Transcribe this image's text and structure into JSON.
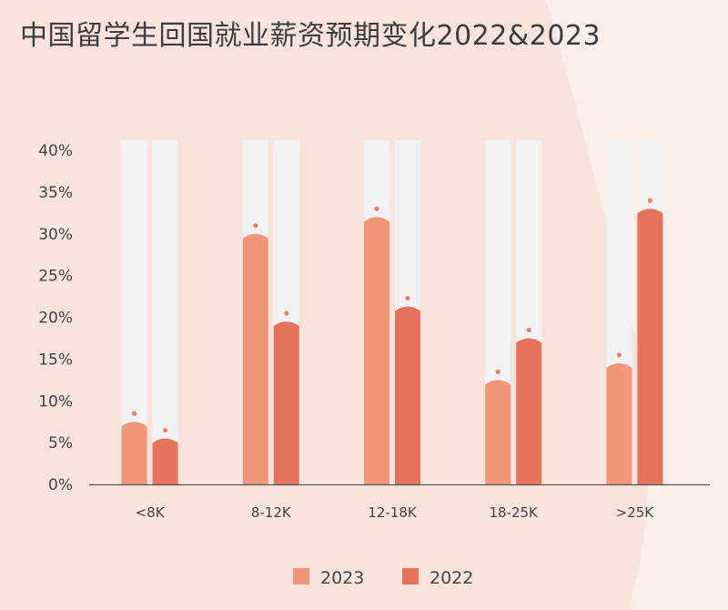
{
  "title": "中国留学生回国就业薪资预期变化2022&2023",
  "colors": {
    "background": "#f8e4dd",
    "background_accent": "#fcefea",
    "track": "#f2f1f4",
    "series_2023": "#f0977a",
    "series_2022": "#e6735e",
    "marker": "#e8826c",
    "axis": "#555555"
  },
  "chart_data": {
    "type": "bar",
    "title": "中国留学生回国就业薪资预期变化2022&2023",
    "xlabel": "",
    "ylabel": "",
    "categories": [
      "<8K",
      "8-12K",
      "12-18K",
      "18-25K",
      ">25K"
    ],
    "series": [
      {
        "name": "2023",
        "values": [
          7.5,
          30,
          32,
          12.5,
          14.5
        ]
      },
      {
        "name": "2022",
        "values": [
          5.5,
          19.5,
          21.3,
          17.5,
          33
        ]
      }
    ],
    "ylim": [
      0,
      40
    ],
    "yticks": [
      "0%",
      "5%",
      "10%",
      "15%",
      "20%",
      "25%",
      "30%",
      "35%",
      "40%"
    ],
    "ytick_values": [
      0,
      5,
      10,
      15,
      20,
      25,
      30,
      35,
      40
    ],
    "legend_position": "bottom-center",
    "grid": false
  }
}
